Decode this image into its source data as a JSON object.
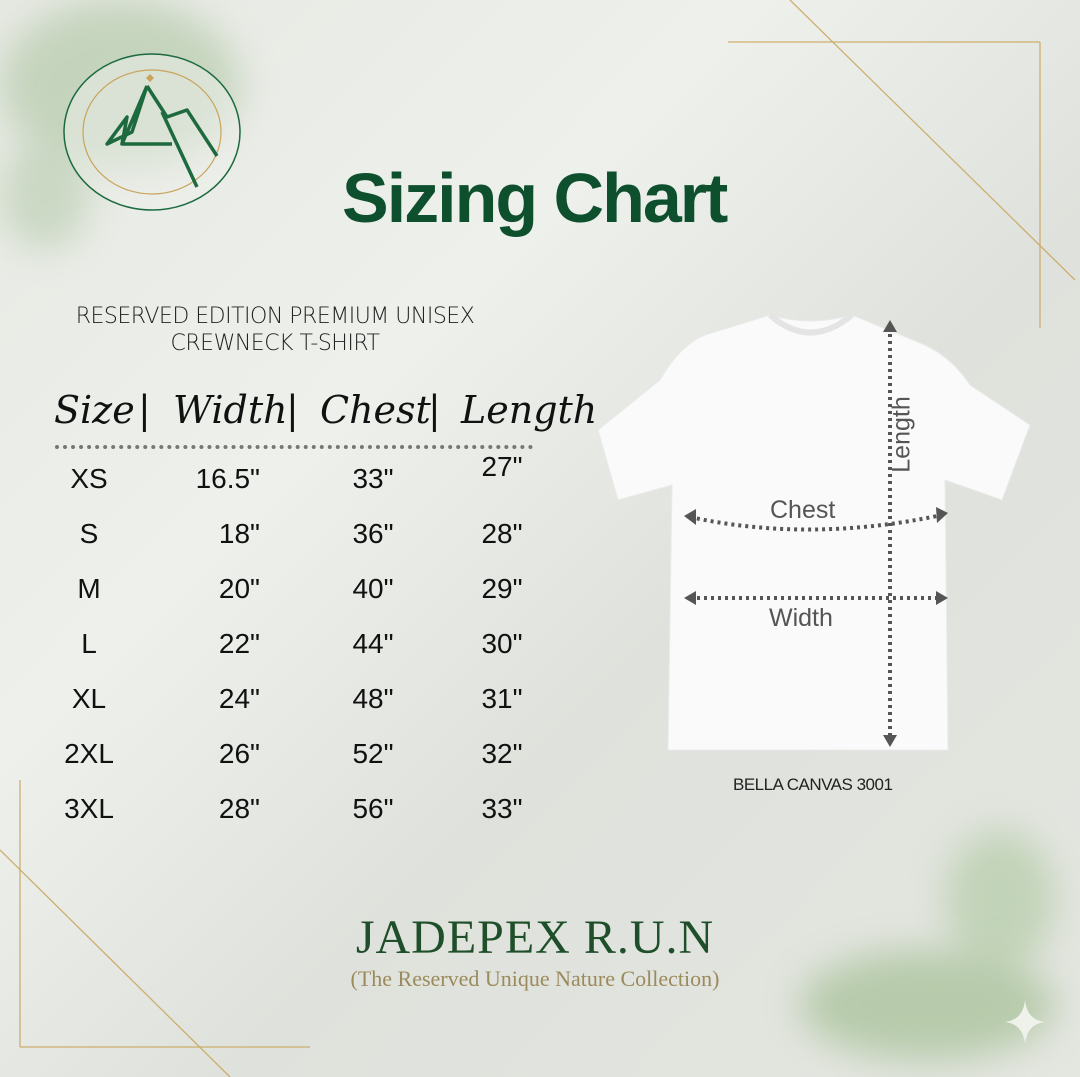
{
  "logo": {
    "top_text": "JADEPEX R.U.N.",
    "bottom_text": "THE RESERVED UNIQUE NATURE COLLECTION"
  },
  "title": "Sizing Chart",
  "product": {
    "line1": "RESERVED EDITION PREMIUM UNISEX",
    "line2": "CREWNECK T-SHIRT"
  },
  "table": {
    "headers": [
      "Size",
      "Width",
      "Chest",
      "Length"
    ],
    "separator": "|",
    "rows": [
      {
        "size": "XS",
        "width": "16.5\"",
        "chest": "33\"",
        "length": "27\""
      },
      {
        "size": "S",
        "width": "18\"",
        "chest": "36\"",
        "length": "28\""
      },
      {
        "size": "M",
        "width": "20\"",
        "chest": "40\"",
        "length": "29\""
      },
      {
        "size": "L",
        "width": "22\"",
        "chest": "44\"",
        "length": "30\""
      },
      {
        "size": "XL",
        "width": "24\"",
        "chest": "48\"",
        "length": "31\""
      },
      {
        "size": "2XL",
        "width": "26\"",
        "chest": "52\"",
        "length": "32\""
      },
      {
        "size": "3XL",
        "width": "28\"",
        "chest": "56\"",
        "length": "33\""
      }
    ]
  },
  "diagram": {
    "length_label": "Length",
    "chest_label": "Chest",
    "width_label": "Width",
    "model": "BELLA CANVAS 3001"
  },
  "footer": {
    "brand": "JADEPEX R.U.N",
    "tagline": "(The Reserved Unique Nature Collection)"
  },
  "colors": {
    "brand_green": "#0e4f2e",
    "gold": "#c9a45a"
  }
}
